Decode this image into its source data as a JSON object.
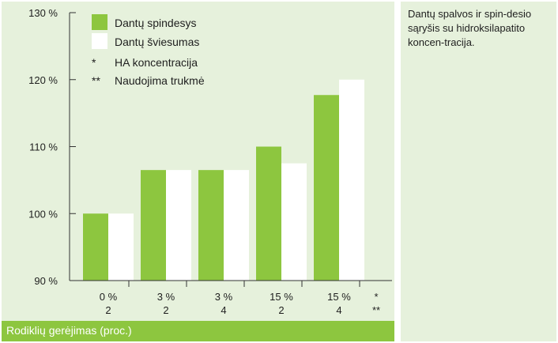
{
  "chart_data": {
    "type": "bar",
    "categories": [
      {
        "line1": "0 %",
        "line2": "2"
      },
      {
        "line1": "3 %",
        "line2": "2"
      },
      {
        "line1": "3 %",
        "line2": "4"
      },
      {
        "line1": "15 %",
        "line2": "2"
      },
      {
        "line1": "15 %",
        "line2": "4"
      }
    ],
    "row_markers": [
      "*",
      "**"
    ],
    "series": [
      {
        "name": "Dantų spindesys",
        "color": "#8dc63f",
        "values": [
          100,
          106.5,
          106.5,
          110,
          117.7
        ]
      },
      {
        "name": "Dantų šviesumas",
        "color": "#ffffff",
        "values": [
          100,
          106.5,
          106.5,
          107.5,
          120
        ]
      }
    ],
    "legend_notes": [
      {
        "symbol": "*",
        "text": "HA koncentracija"
      },
      {
        "symbol": "**",
        "text": "Naudojima trukmė"
      }
    ],
    "yticks": [
      "90 %",
      "100 %",
      "110 %",
      "120 %",
      "130 %"
    ],
    "ylim": [
      90,
      130
    ],
    "xlabel": "Rodiklių gerėjimas (proc.)",
    "legend_position": "top-left",
    "grid": false
  },
  "caption": "Dantų spalvos ir spin-desio sąryšis su hidroksilapatito koncen-tracija."
}
